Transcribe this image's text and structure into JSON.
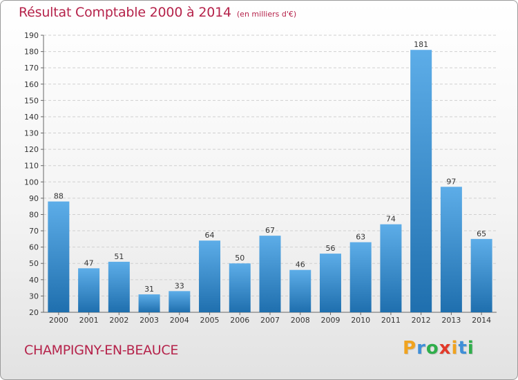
{
  "title": "Résultat Comptable 2000 à 2014",
  "subtitle": "(en milliers d'€)",
  "commune": "CHAMPIGNY-EN-BEAUCE",
  "logo": {
    "letters": [
      "P",
      "r",
      "o",
      "x",
      "i",
      "t",
      "i"
    ],
    "colors": [
      "#f0a31f",
      "#3f8fd8",
      "#2fae4b",
      "#e23a2a",
      "#f0a31f",
      "#3f8fd8",
      "#2fae4b"
    ]
  },
  "colors": {
    "bar_light": "#5dade8",
    "bar_dark": "#1f6fae",
    "title": "#b5224a"
  },
  "chart_data": {
    "type": "bar",
    "categories": [
      "2000",
      "2001",
      "2002",
      "2003",
      "2004",
      "2005",
      "2006",
      "2007",
      "2008",
      "2009",
      "2010",
      "2011",
      "2012",
      "2013",
      "2014"
    ],
    "values": [
      88,
      47,
      51,
      31,
      33,
      64,
      50,
      67,
      46,
      56,
      63,
      74,
      181,
      97,
      65
    ],
    "ylim": [
      20,
      190
    ],
    "yticks": [
      20,
      30,
      40,
      50,
      60,
      70,
      80,
      90,
      100,
      110,
      120,
      130,
      140,
      150,
      160,
      170,
      180,
      190
    ],
    "grid": true,
    "xlabel": "",
    "ylabel": ""
  }
}
